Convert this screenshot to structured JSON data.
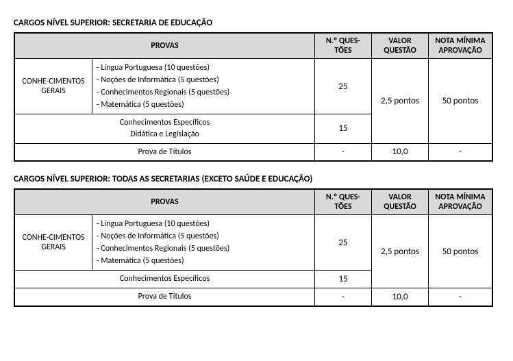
{
  "tables": [
    {
      "title": "CARGOS NÍVEL SUPERIOR: SECRETARIA DE EDUCAÇÃO",
      "headers": {
        "provas": "PROVAS",
        "nquestoes": "N.º QUES-TÕES",
        "valor": "VALOR QUESTÃO",
        "nota": "NOTA MÍNIMA APROVAÇÃO"
      },
      "gerais_label": "CONHE-CIMENTOS GERAIS",
      "subjects": [
        "- Língua Portuguesa (10 questões)",
        "- Noções de Informática (5 questões)",
        "- Conhecimentos Regionais (5 questões)",
        "- Matemática (5 questões)"
      ],
      "gerais_nq": "25",
      "especificos_lines": [
        "Conhecimentos Específicos",
        "Didática e Legislação"
      ],
      "especificos_nq": "15",
      "valor_questao": "2,5 pontos",
      "nota_minima": "50 pontos",
      "titulos_label": "Prova de Títulos",
      "titulos_nq": "-",
      "titulos_valor": "10,0",
      "titulos_nota": "-"
    },
    {
      "title": "CARGOS NÍVEL SUPERIOR: TODAS AS SECRETARIAS (EXCETO SAÚDE E EDUCAÇÃO)",
      "headers": {
        "provas": "PROVAS",
        "nquestoes": "N.º QUES-TÕES",
        "valor": "VALOR QUESTÃO",
        "nota": "NOTA MÍNIMA APROVAÇÃO"
      },
      "gerais_label": "CONHE-CIMENTOS GERAIS",
      "subjects": [
        "- Língua Portuguesa (10 questões)",
        "- Noções de Informática (5 questões)",
        "- Conhecimentos Regionais (5 questões)",
        "- Matemática (5 questões)"
      ],
      "gerais_nq": "25",
      "especificos_lines": [
        "Conhecimentos Específicos"
      ],
      "especificos_nq": "15",
      "valor_questao": "2,5 pontos",
      "nota_minima": "50 pontos",
      "titulos_label": "Prova de Títulos",
      "titulos_nq": "-",
      "titulos_valor": "10,0",
      "titulos_nota": "-"
    }
  ]
}
